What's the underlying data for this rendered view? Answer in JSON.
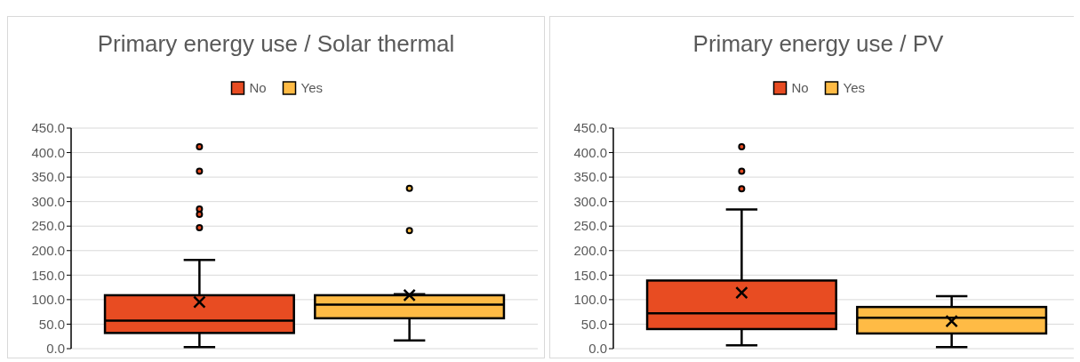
{
  "chart_data": [
    {
      "type": "box",
      "title": "Primary energy use / Solar thermal",
      "categories": [
        null
      ],
      "ylim": [
        0,
        450
      ],
      "yticks": [
        {
          "value": 0,
          "label": "0.0"
        },
        {
          "value": 50,
          "label": "50.0"
        },
        {
          "value": 100,
          "label": "100.0"
        },
        {
          "value": 150,
          "label": "150.0"
        },
        {
          "value": 200,
          "label": "200.0"
        },
        {
          "value": 250,
          "label": "250.0"
        },
        {
          "value": 300,
          "label": "300.0"
        },
        {
          "value": 350,
          "label": "350.0"
        },
        {
          "value": 400,
          "label": "400.0"
        },
        {
          "value": 450,
          "label": "450.0"
        }
      ],
      "grid": "y",
      "legend": "top",
      "series": [
        {
          "name": "No",
          "color": "#e84c22",
          "boxes": [
            {
              "low": 3,
              "q1": 32,
              "median": 57,
              "q3": 109,
              "high": 181,
              "mean": 95,
              "outliers": [
                412,
                362,
                285,
                274,
                247
              ]
            }
          ]
        },
        {
          "name": "Yes",
          "color": "#ffbb45",
          "boxes": [
            {
              "low": 17,
              "q1": 62,
              "median": 90,
              "q3": 109,
              "high": 111,
              "mean": 109,
              "outliers": [
                327,
                241
              ]
            }
          ]
        }
      ]
    },
    {
      "type": "box",
      "title": "Primary energy use / PV",
      "categories": [
        null
      ],
      "ylim": [
        0,
        450
      ],
      "yticks": [
        {
          "value": 0,
          "label": "0.0"
        },
        {
          "value": 50,
          "label": "50.0"
        },
        {
          "value": 100,
          "label": "100.0"
        },
        {
          "value": 150,
          "label": "150.0"
        },
        {
          "value": 200,
          "label": "200.0"
        },
        {
          "value": 250,
          "label": "250.0"
        },
        {
          "value": 300,
          "label": "300.0"
        },
        {
          "value": 350,
          "label": "350.0"
        },
        {
          "value": 400,
          "label": "400.0"
        },
        {
          "value": 450,
          "label": "450.0"
        }
      ],
      "grid": "y",
      "legend": "top",
      "series": [
        {
          "name": "No",
          "color": "#e84c22",
          "boxes": [
            {
              "low": 7,
              "q1": 40,
              "median": 72,
              "q3": 139,
              "high": 284,
              "mean": 114,
              "outliers": [
                412,
                362,
                326
              ]
            }
          ]
        },
        {
          "name": "Yes",
          "color": "#ffbb45",
          "boxes": [
            {
              "low": 3,
              "q1": 31,
              "median": 63,
              "q3": 85,
              "high": 107,
              "mean": 56
            }
          ]
        }
      ]
    }
  ]
}
